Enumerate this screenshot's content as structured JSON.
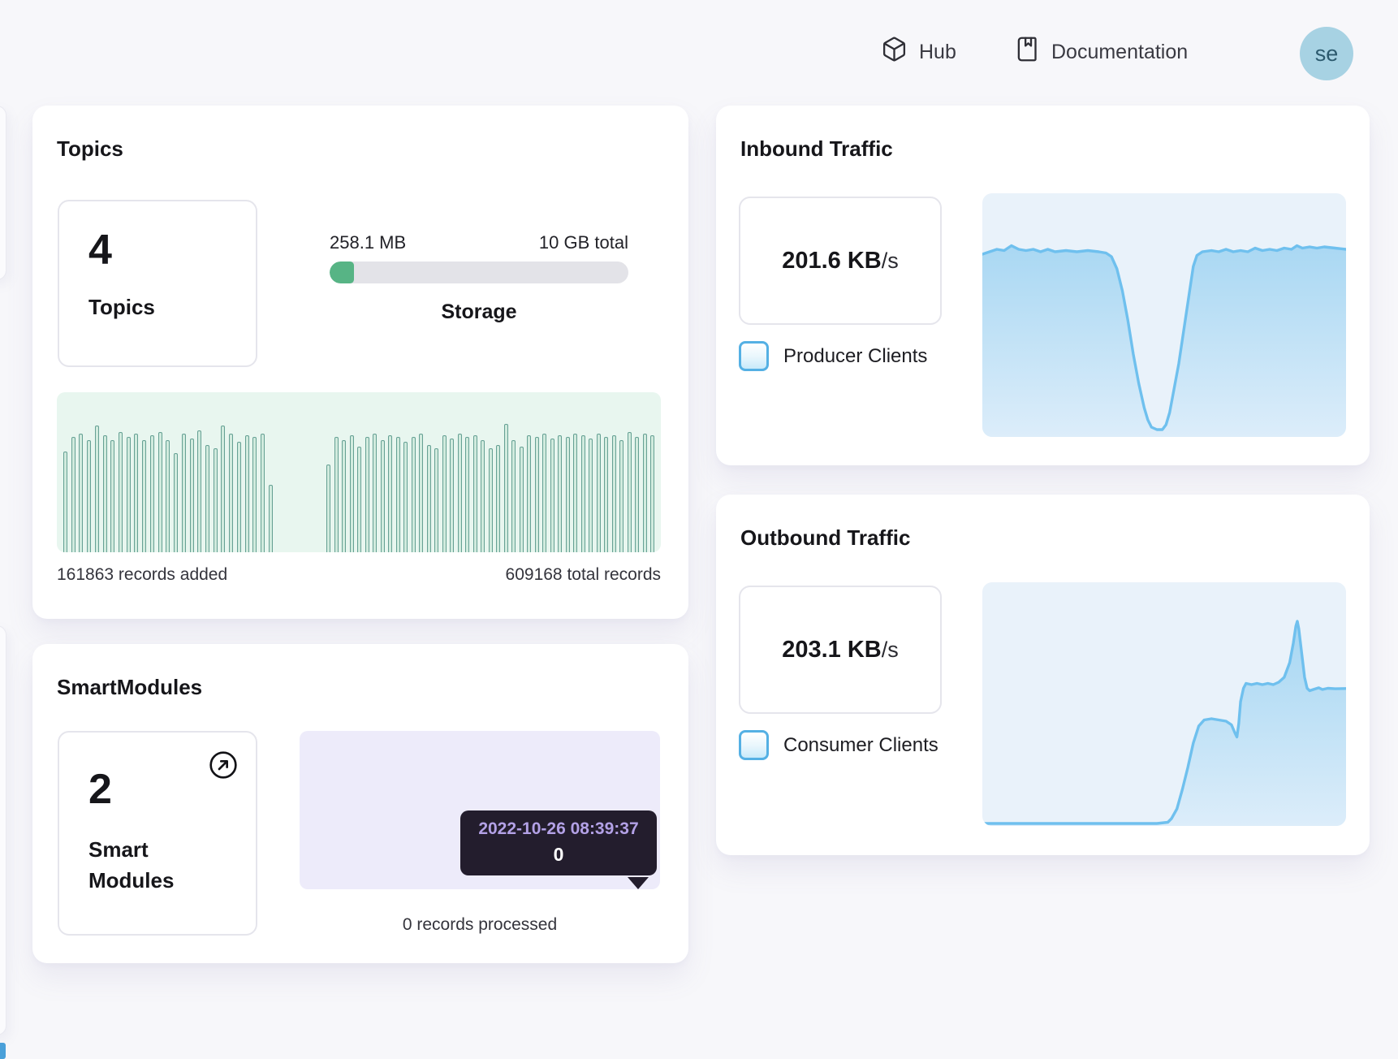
{
  "header": {
    "hub_label": "Hub",
    "documentation_label": "Documentation",
    "avatar_initials": "se"
  },
  "topics_card": {
    "title": "Topics",
    "stat_value": "4",
    "stat_label": "Topics",
    "storage_used": "258.1 MB",
    "storage_total": "10 GB total",
    "storage_label": "Storage",
    "records_added": "161863 records added",
    "total_records": "609168 total records"
  },
  "smartmodules_card": {
    "title": "SmartModules",
    "stat_value": "2",
    "stat_label": "Smart Modules",
    "tooltip_date": "2022-10-26 08:39:37",
    "tooltip_value": "0",
    "records_processed": "0 records processed"
  },
  "inbound_card": {
    "title": "Inbound Traffic",
    "rate_value": "201.6 KB",
    "rate_unit": "/s",
    "legend_label": "Producer Clients"
  },
  "outbound_card": {
    "title": "Outbound Traffic",
    "rate_value": "203.1 KB",
    "rate_unit": "/s",
    "legend_label": "Consumer Clients"
  },
  "colors": {
    "accent_green": "#57b485",
    "accent_blue": "#6fc0ee",
    "mint_background": "#e8f6ef",
    "blue_background": "#e9f2fa",
    "lavender_background": "#edebfa",
    "tooltip_background": "#231d2d",
    "tooltip_date_text": "#b3a1e6",
    "avatar_background": "#a7d2e3",
    "checkbox_border": "#54b0e4"
  },
  "chart_data": [
    {
      "id": "topic-records",
      "type": "bar",
      "title": "Topics records activity",
      "note": "two groups of per-partition record bars, heights as % of chart height",
      "bar_color": "#cfeadd",
      "bar_border": "#57978a",
      "background": "#e8f6ef",
      "groups": [
        [
          63,
          72,
          74,
          70,
          79,
          73,
          70,
          75,
          72,
          74,
          70,
          73,
          75,
          70,
          62,
          74,
          71,
          76,
          67,
          65,
          79,
          74,
          69,
          73,
          72,
          74,
          42
        ],
        [
          55,
          72,
          70,
          73,
          66,
          72,
          74,
          70,
          73,
          72,
          69,
          72,
          74,
          67,
          65,
          73,
          71,
          74,
          72,
          73,
          70,
          65,
          67,
          80,
          70,
          66,
          73,
          72,
          74,
          71,
          73,
          72,
          74,
          73,
          71,
          74,
          72,
          73,
          70,
          75,
          72,
          74,
          73
        ]
      ]
    },
    {
      "id": "inbound-traffic",
      "type": "area",
      "title": "Inbound Traffic over time",
      "y_unit": "KB/s",
      "current_value": "201.6 KB/s",
      "line_color": "#6fc0ee",
      "fill_top": "#a5d6f2",
      "fill_bottom": "#dcedfa",
      "background": "#e9f2fa",
      "points": [
        [
          0,
          25
        ],
        [
          2,
          24
        ],
        [
          4,
          23
        ],
        [
          6,
          23.5
        ],
        [
          8,
          21.5
        ],
        [
          10,
          23
        ],
        [
          12,
          23.5
        ],
        [
          14,
          23
        ],
        [
          16,
          24
        ],
        [
          18,
          23
        ],
        [
          20,
          24
        ],
        [
          23,
          23.5
        ],
        [
          26,
          24
        ],
        [
          29,
          23.5
        ],
        [
          32,
          24
        ],
        [
          34,
          24.5
        ],
        [
          35.5,
          26
        ],
        [
          37,
          31
        ],
        [
          38.5,
          40
        ],
        [
          40,
          52
        ],
        [
          41.5,
          66
        ],
        [
          43,
          78
        ],
        [
          44.5,
          88
        ],
        [
          45.5,
          93
        ],
        [
          46.5,
          96
        ],
        [
          48,
          97
        ],
        [
          49.5,
          97
        ],
        [
          50.5,
          95
        ],
        [
          51.5,
          90
        ],
        [
          52.5,
          82
        ],
        [
          54,
          70
        ],
        [
          55.5,
          55
        ],
        [
          57,
          40
        ],
        [
          58,
          30
        ],
        [
          59,
          25.5
        ],
        [
          60.5,
          24
        ],
        [
          63,
          23.5
        ],
        [
          65,
          24
        ],
        [
          67,
          23
        ],
        [
          69,
          24
        ],
        [
          71,
          23.5
        ],
        [
          73,
          24
        ],
        [
          75,
          22.5
        ],
        [
          77,
          23.5
        ],
        [
          79,
          23
        ],
        [
          81,
          23.5
        ],
        [
          83,
          22.5
        ],
        [
          85,
          23
        ],
        [
          86.5,
          21.5
        ],
        [
          88,
          22.5
        ],
        [
          90,
          22
        ],
        [
          92,
          22.5
        ],
        [
          94,
          22
        ],
        [
          97,
          22.5
        ],
        [
          100,
          23
        ]
      ]
    },
    {
      "id": "outbound-traffic",
      "type": "area",
      "title": "Outbound Traffic over time",
      "y_unit": "KB/s",
      "current_value": "203.1 KB/s",
      "line_color": "#6fc0ee",
      "fill_top": "#a5d6f2",
      "fill_bottom": "#dcedfa",
      "background": "#e9f2fa",
      "points": [
        [
          0,
          99
        ],
        [
          48,
          99
        ],
        [
          51,
          98.5
        ],
        [
          52,
          97
        ],
        [
          53.5,
          93
        ],
        [
          55,
          85
        ],
        [
          56.5,
          76
        ],
        [
          58,
          66
        ],
        [
          59.5,
          59
        ],
        [
          61,
          56.5
        ],
        [
          63,
          56
        ],
        [
          65,
          56.5
        ],
        [
          67,
          57
        ],
        [
          68.5,
          58.5
        ],
        [
          69.5,
          62
        ],
        [
          70,
          63.5
        ],
        [
          70.5,
          58
        ],
        [
          71,
          49
        ],
        [
          71.8,
          43.5
        ],
        [
          72.5,
          41.5
        ],
        [
          74,
          42
        ],
        [
          75.5,
          41.5
        ],
        [
          77,
          42
        ],
        [
          78.5,
          41.5
        ],
        [
          80,
          42
        ],
        [
          81.5,
          41
        ],
        [
          83,
          39
        ],
        [
          84.5,
          33
        ],
        [
          85.5,
          25
        ],
        [
          86.2,
          18
        ],
        [
          86.6,
          16
        ],
        [
          87,
          19
        ],
        [
          87.8,
          29
        ],
        [
          88.6,
          39
        ],
        [
          89.3,
          43.5
        ],
        [
          90,
          44.5
        ],
        [
          91,
          44
        ],
        [
          92.5,
          43.3
        ],
        [
          93.5,
          44
        ],
        [
          95,
          43.5
        ],
        [
          97,
          43.7
        ],
        [
          100,
          43.6
        ]
      ]
    }
  ]
}
